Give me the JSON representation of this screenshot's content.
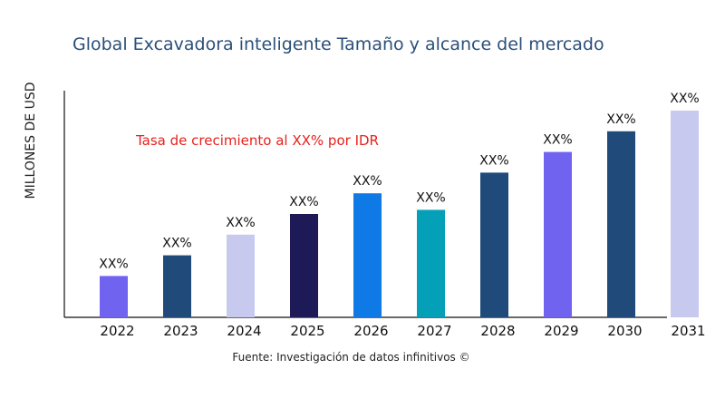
{
  "chart_data": {
    "type": "bar",
    "title": "Global Excavadora inteligente Tamaño y alcance del mercado",
    "ylabel": "MILLONES DE USD",
    "xlabel": "",
    "annotation": "Tasa de crecimiento al XX% por IDR",
    "source": "Fuente: Investigación de datos infinitivos ©",
    "categories": [
      "2022",
      "2023",
      "2024",
      "2025",
      "2026",
      "2027",
      "2028",
      "2029",
      "2030",
      "2031"
    ],
    "values": [
      20,
      30,
      40,
      50,
      60,
      52,
      70,
      80,
      90,
      100
    ],
    "data_labels": [
      "XX%",
      "XX%",
      "XX%",
      "XX%",
      "XX%",
      "XX%",
      "XX%",
      "XX%",
      "XX%",
      "XX%"
    ],
    "colors": [
      "#7063f0",
      "#1f4a7a",
      "#c8c9ef",
      "#1e1a58",
      "#0f7ae5",
      "#04a0b8",
      "#1f4a7a",
      "#7063f0",
      "#1f4a7a",
      "#c8c9ef"
    ],
    "ylim": [
      0,
      100
    ],
    "grid": false,
    "legend": "none"
  }
}
